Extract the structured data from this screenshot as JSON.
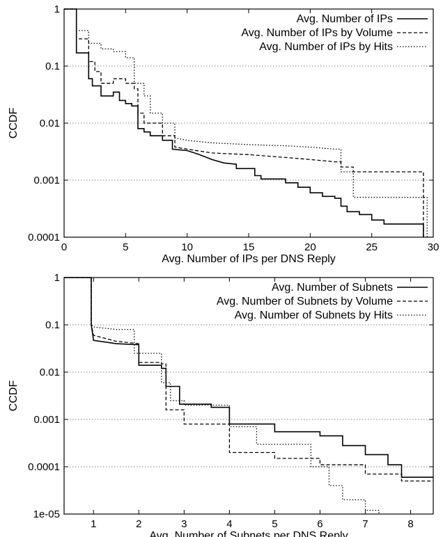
{
  "chart_data": [
    {
      "type": "line",
      "xlabel": "Avg. Number of IPs per DNS Reply",
      "ylabel": "CCDF",
      "xlim": [
        0,
        30
      ],
      "ylim": [
        0.0001,
        1
      ],
      "y_scale": "log",
      "grid": "horizontal",
      "legend_position": "top-right",
      "x_ticks": [
        "0",
        "5",
        "10",
        "15",
        "20",
        "25",
        "30"
      ],
      "y_ticks": [
        "0.0001",
        "0.001",
        "0.01",
        "0.1",
        "1"
      ],
      "series": [
        {
          "name": "Avg. Number of IPs",
          "style": "solid",
          "x": [
            0,
            1,
            1,
            2,
            2,
            2.3,
            2.3,
            3,
            3,
            4,
            4,
            4.5,
            4.5,
            5,
            5,
            5.5,
            5.5,
            6,
            6,
            6.5,
            6.5,
            7,
            7,
            8,
            8,
            8.8,
            8.8,
            10,
            11,
            12,
            13,
            14,
            14,
            15.5,
            15.5,
            16,
            16,
            18,
            18,
            19,
            19,
            20,
            20,
            21,
            21,
            22,
            22,
            22.5,
            22.5,
            23,
            23,
            24,
            24,
            25,
            25,
            26,
            26,
            29.2,
            29.2
          ],
          "y": [
            1,
            1,
            0.17,
            0.17,
            0.06,
            0.06,
            0.045,
            0.045,
            0.03,
            0.03,
            0.035,
            0.035,
            0.025,
            0.025,
            0.022,
            0.022,
            0.02,
            0.02,
            0.008,
            0.008,
            0.007,
            0.007,
            0.006,
            0.006,
            0.005,
            0.005,
            0.0035,
            0.0033,
            0.0028,
            0.0023,
            0.002,
            0.0019,
            0.0016,
            0.0016,
            0.0012,
            0.0012,
            0.00105,
            0.00105,
            0.0009,
            0.0009,
            0.00075,
            0.00075,
            0.0006,
            0.0006,
            0.00052,
            0.00052,
            0.00048,
            0.00048,
            0.00035,
            0.00035,
            0.00028,
            0.00028,
            0.00025,
            0.00025,
            0.0002,
            0.0002,
            0.00017,
            0.00017,
            0.0001
          ]
        },
        {
          "name": "Avg. Number of IPs by Volume",
          "style": "dashed",
          "x": [
            0,
            1,
            1,
            2,
            2,
            2.5,
            2.5,
            3,
            3,
            4,
            4,
            5,
            5,
            5.7,
            5.7,
            6,
            6,
            6.5,
            6.5,
            8,
            8,
            9,
            9,
            10,
            12,
            15,
            18,
            20,
            22,
            22.5,
            22.5,
            23.5,
            23.5,
            29.2,
            29.2
          ],
          "y": [
            1,
            1,
            0.3,
            0.3,
            0.12,
            0.12,
            0.08,
            0.08,
            0.05,
            0.05,
            0.06,
            0.06,
            0.05,
            0.05,
            0.04,
            0.04,
            0.015,
            0.015,
            0.01,
            0.01,
            0.006,
            0.006,
            0.0038,
            0.0035,
            0.003,
            0.0028,
            0.0025,
            0.0023,
            0.0021,
            0.0021,
            0.0017,
            0.0017,
            0.0014,
            0.0014,
            0.0001
          ]
        },
        {
          "name": "Avg. Number of IPs by Hits",
          "style": "dotted",
          "x": [
            0,
            1,
            1,
            2,
            2,
            3,
            3,
            4,
            4,
            5,
            5,
            5.7,
            5.7,
            6.5,
            6.5,
            7,
            7,
            8,
            8,
            9,
            9,
            10,
            12,
            15,
            18,
            20,
            22,
            22.5,
            22.5,
            23.5,
            23.5,
            29.5,
            29.5
          ],
          "y": [
            1,
            1,
            0.42,
            0.42,
            0.25,
            0.25,
            0.2,
            0.2,
            0.18,
            0.18,
            0.14,
            0.14,
            0.05,
            0.05,
            0.03,
            0.03,
            0.015,
            0.015,
            0.01,
            0.01,
            0.0055,
            0.005,
            0.0045,
            0.0042,
            0.004,
            0.0038,
            0.0035,
            0.0035,
            0.0014,
            0.0014,
            0.0005,
            0.0005,
            0.0001
          ]
        }
      ]
    },
    {
      "type": "line",
      "xlabel": "Avg. Number of Subnets per DNS Reply",
      "ylabel": "CCDF",
      "xlim": [
        0.35,
        8.5
      ],
      "ylim": [
        1e-05,
        1
      ],
      "y_scale": "log",
      "grid": "horizontal",
      "legend_position": "top-right",
      "x_ticks": [
        "1",
        "2",
        "3",
        "4",
        "5",
        "6",
        "7",
        "8"
      ],
      "y_ticks": [
        "1e-05",
        "0.0001",
        "0.001",
        "0.01",
        "0.1",
        "1"
      ],
      "series": [
        {
          "name": "Avg. Number of Subnets",
          "style": "solid",
          "x": [
            0.35,
            0.95,
            0.95,
            1,
            1.5,
            2,
            2,
            2.5,
            2.5,
            2.6,
            2.6,
            2.9,
            2.9,
            3.6,
            3.6,
            4,
            4,
            5,
            5,
            6,
            6,
            6.5,
            6.5,
            7,
            7,
            7.5,
            7.5,
            7.8,
            7.8,
            8.5
          ],
          "y": [
            1,
            1,
            0.1,
            0.047,
            0.04,
            0.038,
            0.014,
            0.014,
            0.012,
            0.012,
            0.005,
            0.005,
            0.0021,
            0.0021,
            0.0018,
            0.0018,
            0.0008,
            0.0008,
            0.00055,
            0.00055,
            0.00045,
            0.00045,
            0.00028,
            0.00028,
            0.00018,
            0.00018,
            0.00011,
            0.00011,
            6e-05,
            6e-05
          ]
        },
        {
          "name": "Avg. Number of Subnets by Volume",
          "style": "dashed",
          "x": [
            0.35,
            0.95,
            0.95,
            1,
            1.5,
            2,
            2,
            2.5,
            2.5,
            2.6,
            2.6,
            3,
            3,
            4,
            4,
            5,
            5,
            6,
            6,
            7,
            7,
            7.8,
            7.8,
            8.5
          ],
          "y": [
            1,
            1,
            0.1,
            0.06,
            0.045,
            0.04,
            0.016,
            0.016,
            0.015,
            0.015,
            0.0016,
            0.0016,
            0.0008,
            0.0008,
            0.0002,
            0.0002,
            0.00015,
            0.00015,
            0.00011,
            0.00011,
            7e-05,
            7e-05,
            5e-05,
            5e-05
          ]
        },
        {
          "name": "Avg. Number of Subnets by Hits",
          "style": "dotted",
          "x": [
            0.35,
            0.95,
            0.95,
            1,
            1.5,
            1.9,
            1.9,
            2.5,
            2.5,
            2.7,
            2.7,
            3,
            3,
            4,
            4,
            4.6,
            4.6,
            5.8,
            5.8,
            6.2,
            6.2,
            6.5,
            6.5,
            7,
            7,
            7.3,
            7.3
          ],
          "y": [
            1,
            1,
            0.1,
            0.09,
            0.08,
            0.08,
            0.025,
            0.025,
            0.006,
            0.006,
            0.0025,
            0.0025,
            0.002,
            0.002,
            0.0007,
            0.0007,
            0.0003,
            0.0003,
            0.0001,
            0.0001,
            4e-05,
            4e-05,
            2e-05,
            2e-05,
            1.2e-05,
            1.2e-05,
            1e-05
          ]
        }
      ]
    }
  ]
}
